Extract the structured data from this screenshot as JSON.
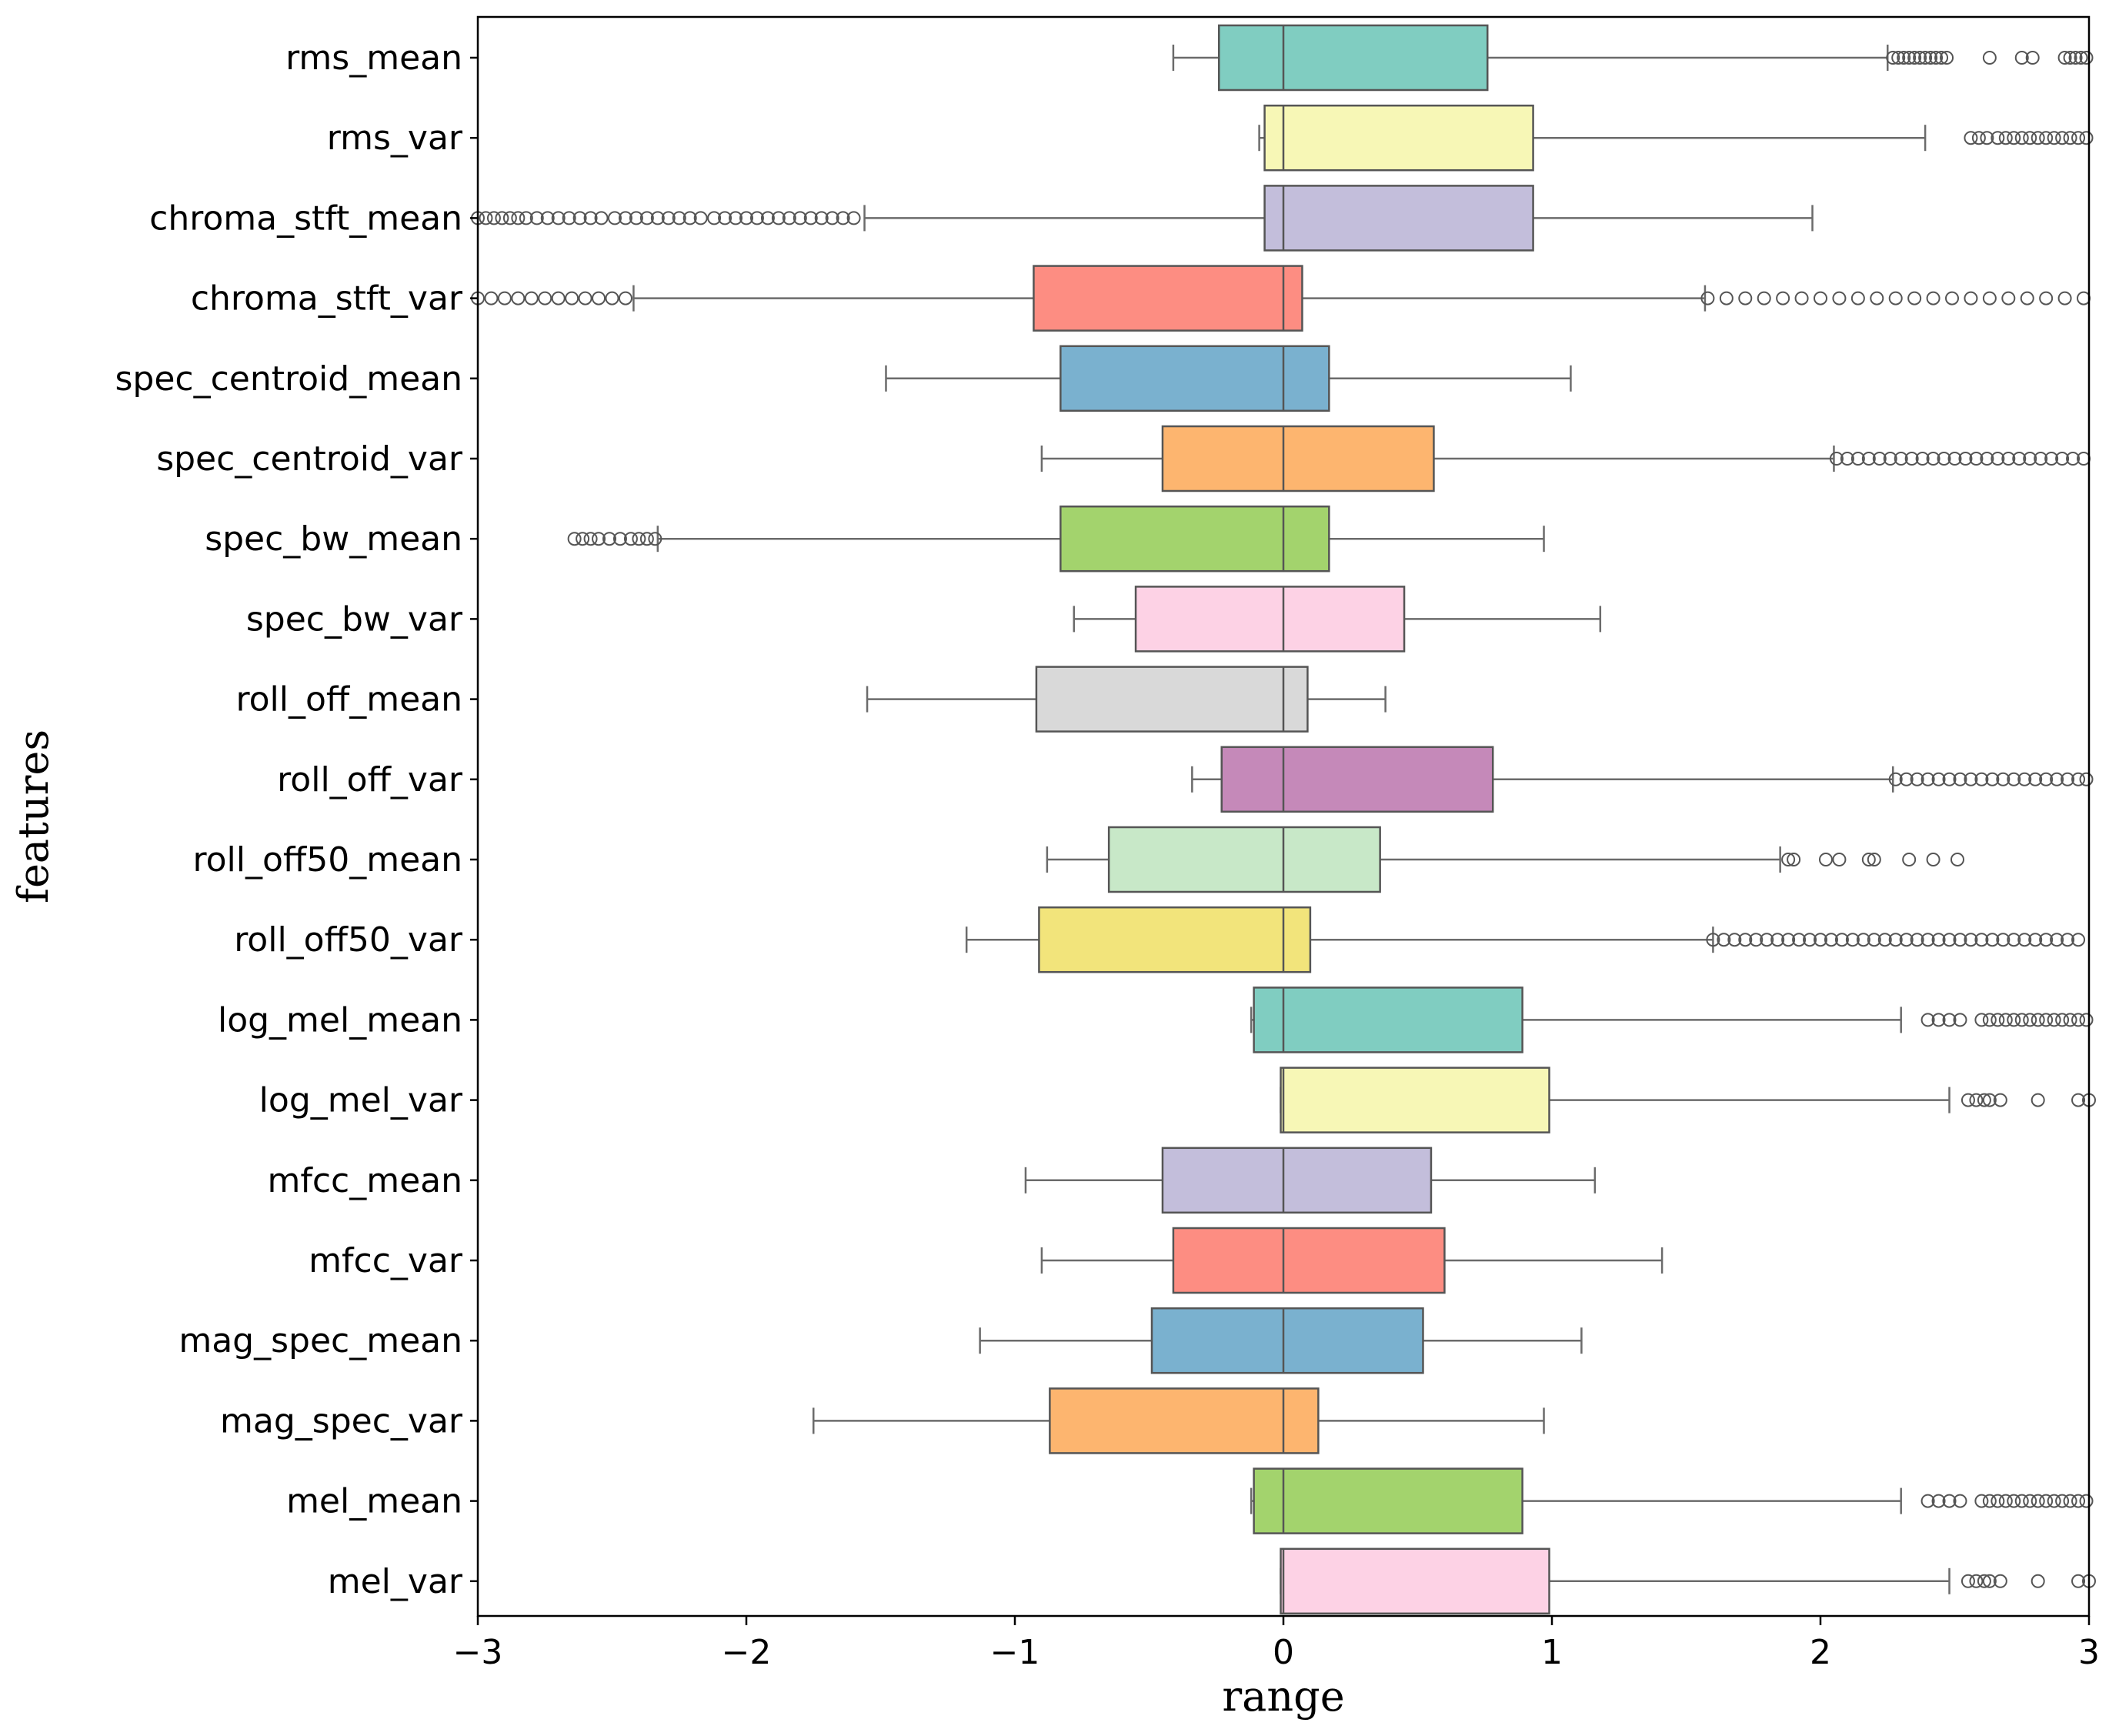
{
  "chart_data": {
    "type": "boxplot",
    "orientation": "horizontal",
    "xlabel": "range",
    "ylabel": "features",
    "xlim": [
      -3,
      3
    ],
    "xticks": [
      -3,
      -2,
      -1,
      0,
      1,
      2,
      3
    ],
    "xtick_labels": [
      "−3",
      "−2",
      "−1",
      "0",
      "1",
      "2",
      "3"
    ],
    "grid": false,
    "series": [
      {
        "name": "rms_mean",
        "color": "#80cdc1",
        "whislo": -0.41,
        "q1": -0.24,
        "med": 0.0,
        "q3": 0.76,
        "whishi": 2.25,
        "fliers": [
          2.27,
          2.29,
          2.31,
          2.33,
          2.35,
          2.37,
          2.39,
          2.41,
          2.43,
          2.45,
          2.47,
          2.63,
          2.75,
          2.79,
          2.91,
          2.93,
          2.95,
          2.97,
          2.99
        ]
      },
      {
        "name": "rms_var",
        "color": "#f7f7b6",
        "whislo": -0.09,
        "q1": -0.07,
        "med": 0.0,
        "q3": 0.93,
        "whishi": 2.39,
        "fliers": [
          2.56,
          2.59,
          2.62,
          2.66,
          2.69,
          2.72,
          2.75,
          2.78,
          2.81,
          2.84,
          2.87,
          2.9,
          2.93,
          2.96,
          2.99
        ]
      },
      {
        "name": "chroma_stft_mean",
        "color": "#c3bedb",
        "whislo": -1.56,
        "q1": -0.07,
        "med": 0.0,
        "q3": 0.93,
        "whishi": 1.97,
        "fliers": [
          -3.0,
          -2.97,
          -2.94,
          -2.91,
          -2.88,
          -2.85,
          -2.82,
          -2.78,
          -2.74,
          -2.7,
          -2.66,
          -2.62,
          -2.58,
          -2.54,
          -2.49,
          -2.45,
          -2.41,
          -2.37,
          -2.33,
          -2.29,
          -2.25,
          -2.21,
          -2.17,
          -2.12,
          -2.08,
          -2.04,
          -2.0,
          -1.96,
          -1.92,
          -1.88,
          -1.84,
          -1.8,
          -1.76,
          -1.72,
          -1.68,
          -1.64,
          -1.6
        ]
      },
      {
        "name": "chroma_stft_var",
        "color": "#fd8d82",
        "whislo": -2.42,
        "q1": -0.93,
        "med": 0.0,
        "q3": 0.07,
        "whishi": 1.57,
        "fliers": [
          -3.0,
          -2.95,
          -2.9,
          -2.85,
          -2.8,
          -2.75,
          -2.7,
          -2.65,
          -2.6,
          -2.55,
          -2.5,
          -2.45,
          1.58,
          1.65,
          1.72,
          1.79,
          1.86,
          1.93,
          2.0,
          2.07,
          2.14,
          2.21,
          2.28,
          2.35,
          2.42,
          2.49,
          2.56,
          2.63,
          2.7,
          2.77,
          2.84,
          2.91,
          2.98
        ]
      },
      {
        "name": "spec_centroid_mean",
        "color": "#7ab1cf",
        "whislo": -1.48,
        "q1": -0.83,
        "med": 0.0,
        "q3": 0.17,
        "whishi": 1.07,
        "fliers": []
      },
      {
        "name": "spec_centroid_var",
        "color": "#fdb56f",
        "whislo": -0.9,
        "q1": -0.45,
        "med": 0.0,
        "q3": 0.56,
        "whishi": 2.05,
        "fliers": [
          2.06,
          2.1,
          2.14,
          2.18,
          2.22,
          2.26,
          2.3,
          2.34,
          2.38,
          2.42,
          2.46,
          2.5,
          2.54,
          2.58,
          2.62,
          2.66,
          2.7,
          2.74,
          2.78,
          2.82,
          2.86,
          2.9,
          2.94,
          2.98
        ]
      },
      {
        "name": "spec_bw_mean",
        "color": "#a3d36d",
        "whislo": -2.33,
        "q1": -0.83,
        "med": 0.0,
        "q3": 0.17,
        "whishi": 0.97,
        "fliers": [
          -2.64,
          -2.61,
          -2.58,
          -2.55,
          -2.51,
          -2.47,
          -2.43,
          -2.4,
          -2.37,
          -2.34
        ]
      },
      {
        "name": "spec_bw_var",
        "color": "#fdd2e5",
        "whislo": -0.78,
        "q1": -0.55,
        "med": 0.0,
        "q3": 0.45,
        "whishi": 1.18,
        "fliers": []
      },
      {
        "name": "roll_off_mean",
        "color": "#d9d9d9",
        "whislo": -1.55,
        "q1": -0.92,
        "med": 0.0,
        "q3": 0.09,
        "whishi": 0.38,
        "fliers": []
      },
      {
        "name": "roll_off_var",
        "color": "#c589b9",
        "whislo": -0.34,
        "q1": -0.23,
        "med": 0.0,
        "q3": 0.78,
        "whishi": 2.27,
        "fliers": [
          2.28,
          2.32,
          2.36,
          2.4,
          2.44,
          2.48,
          2.52,
          2.56,
          2.6,
          2.64,
          2.68,
          2.72,
          2.76,
          2.8,
          2.84,
          2.88,
          2.92,
          2.96,
          2.99
        ]
      },
      {
        "name": "roll_off50_mean",
        "color": "#c8e8c8",
        "whislo": -0.88,
        "q1": -0.65,
        "med": 0.0,
        "q3": 0.36,
        "whishi": 1.85,
        "fliers": [
          1.88,
          1.9,
          2.02,
          2.07,
          2.18,
          2.2,
          2.33,
          2.42,
          2.51
        ]
      },
      {
        "name": "roll_off50_var",
        "color": "#f2e47b",
        "whislo": -1.18,
        "q1": -0.91,
        "med": 0.0,
        "q3": 0.1,
        "whishi": 1.6,
        "fliers": [
          1.6,
          1.64,
          1.68,
          1.72,
          1.76,
          1.8,
          1.84,
          1.88,
          1.92,
          1.96,
          2.0,
          2.04,
          2.08,
          2.12,
          2.16,
          2.2,
          2.24,
          2.28,
          2.32,
          2.36,
          2.4,
          2.44,
          2.48,
          2.52,
          2.56,
          2.6,
          2.64,
          2.68,
          2.72,
          2.76,
          2.8,
          2.84,
          2.88,
          2.92,
          2.96
        ]
      },
      {
        "name": "log_mel_mean",
        "color": "#80cdc1",
        "whislo": -0.12,
        "q1": -0.11,
        "med": 0.0,
        "q3": 0.89,
        "whishi": 2.3,
        "fliers": [
          2.4,
          2.44,
          2.48,
          2.52,
          2.6,
          2.63,
          2.66,
          2.69,
          2.72,
          2.75,
          2.78,
          2.81,
          2.84,
          2.87,
          2.9,
          2.93,
          2.96,
          2.99
        ]
      },
      {
        "name": "log_mel_var",
        "color": "#f7f7b6",
        "whislo": -0.01,
        "q1": -0.01,
        "med": 0.0,
        "q3": 0.99,
        "whishi": 2.48,
        "fliers": [
          2.55,
          2.58,
          2.61,
          2.63,
          2.67,
          2.81,
          2.96,
          3.0
        ]
      },
      {
        "name": "mfcc_mean",
        "color": "#c3bedb",
        "whislo": -0.96,
        "q1": -0.45,
        "med": 0.0,
        "q3": 0.55,
        "whishi": 1.16,
        "fliers": []
      },
      {
        "name": "mfcc_var",
        "color": "#fd8d82",
        "whislo": -0.9,
        "q1": -0.41,
        "med": 0.0,
        "q3": 0.6,
        "whishi": 1.41,
        "fliers": []
      },
      {
        "name": "mag_spec_mean",
        "color": "#7ab1cf",
        "whislo": -1.13,
        "q1": -0.49,
        "med": 0.0,
        "q3": 0.52,
        "whishi": 1.11,
        "fliers": []
      },
      {
        "name": "mag_spec_var",
        "color": "#fdb56f",
        "whislo": -1.75,
        "q1": -0.87,
        "med": 0.0,
        "q3": 0.13,
        "whishi": 0.97,
        "fliers": []
      },
      {
        "name": "mel_mean",
        "color": "#a3d36d",
        "whislo": -0.12,
        "q1": -0.11,
        "med": 0.0,
        "q3": 0.89,
        "whishi": 2.3,
        "fliers": [
          2.4,
          2.44,
          2.48,
          2.52,
          2.6,
          2.63,
          2.66,
          2.69,
          2.72,
          2.75,
          2.78,
          2.81,
          2.84,
          2.87,
          2.9,
          2.93,
          2.96,
          2.99
        ]
      },
      {
        "name": "mel_var",
        "color": "#fdd2e5",
        "whislo": -0.01,
        "q1": -0.01,
        "med": 0.0,
        "q3": 0.99,
        "whishi": 2.48,
        "fliers": [
          2.55,
          2.58,
          2.61,
          2.63,
          2.67,
          2.81,
          2.96,
          3.0
        ]
      }
    ]
  }
}
